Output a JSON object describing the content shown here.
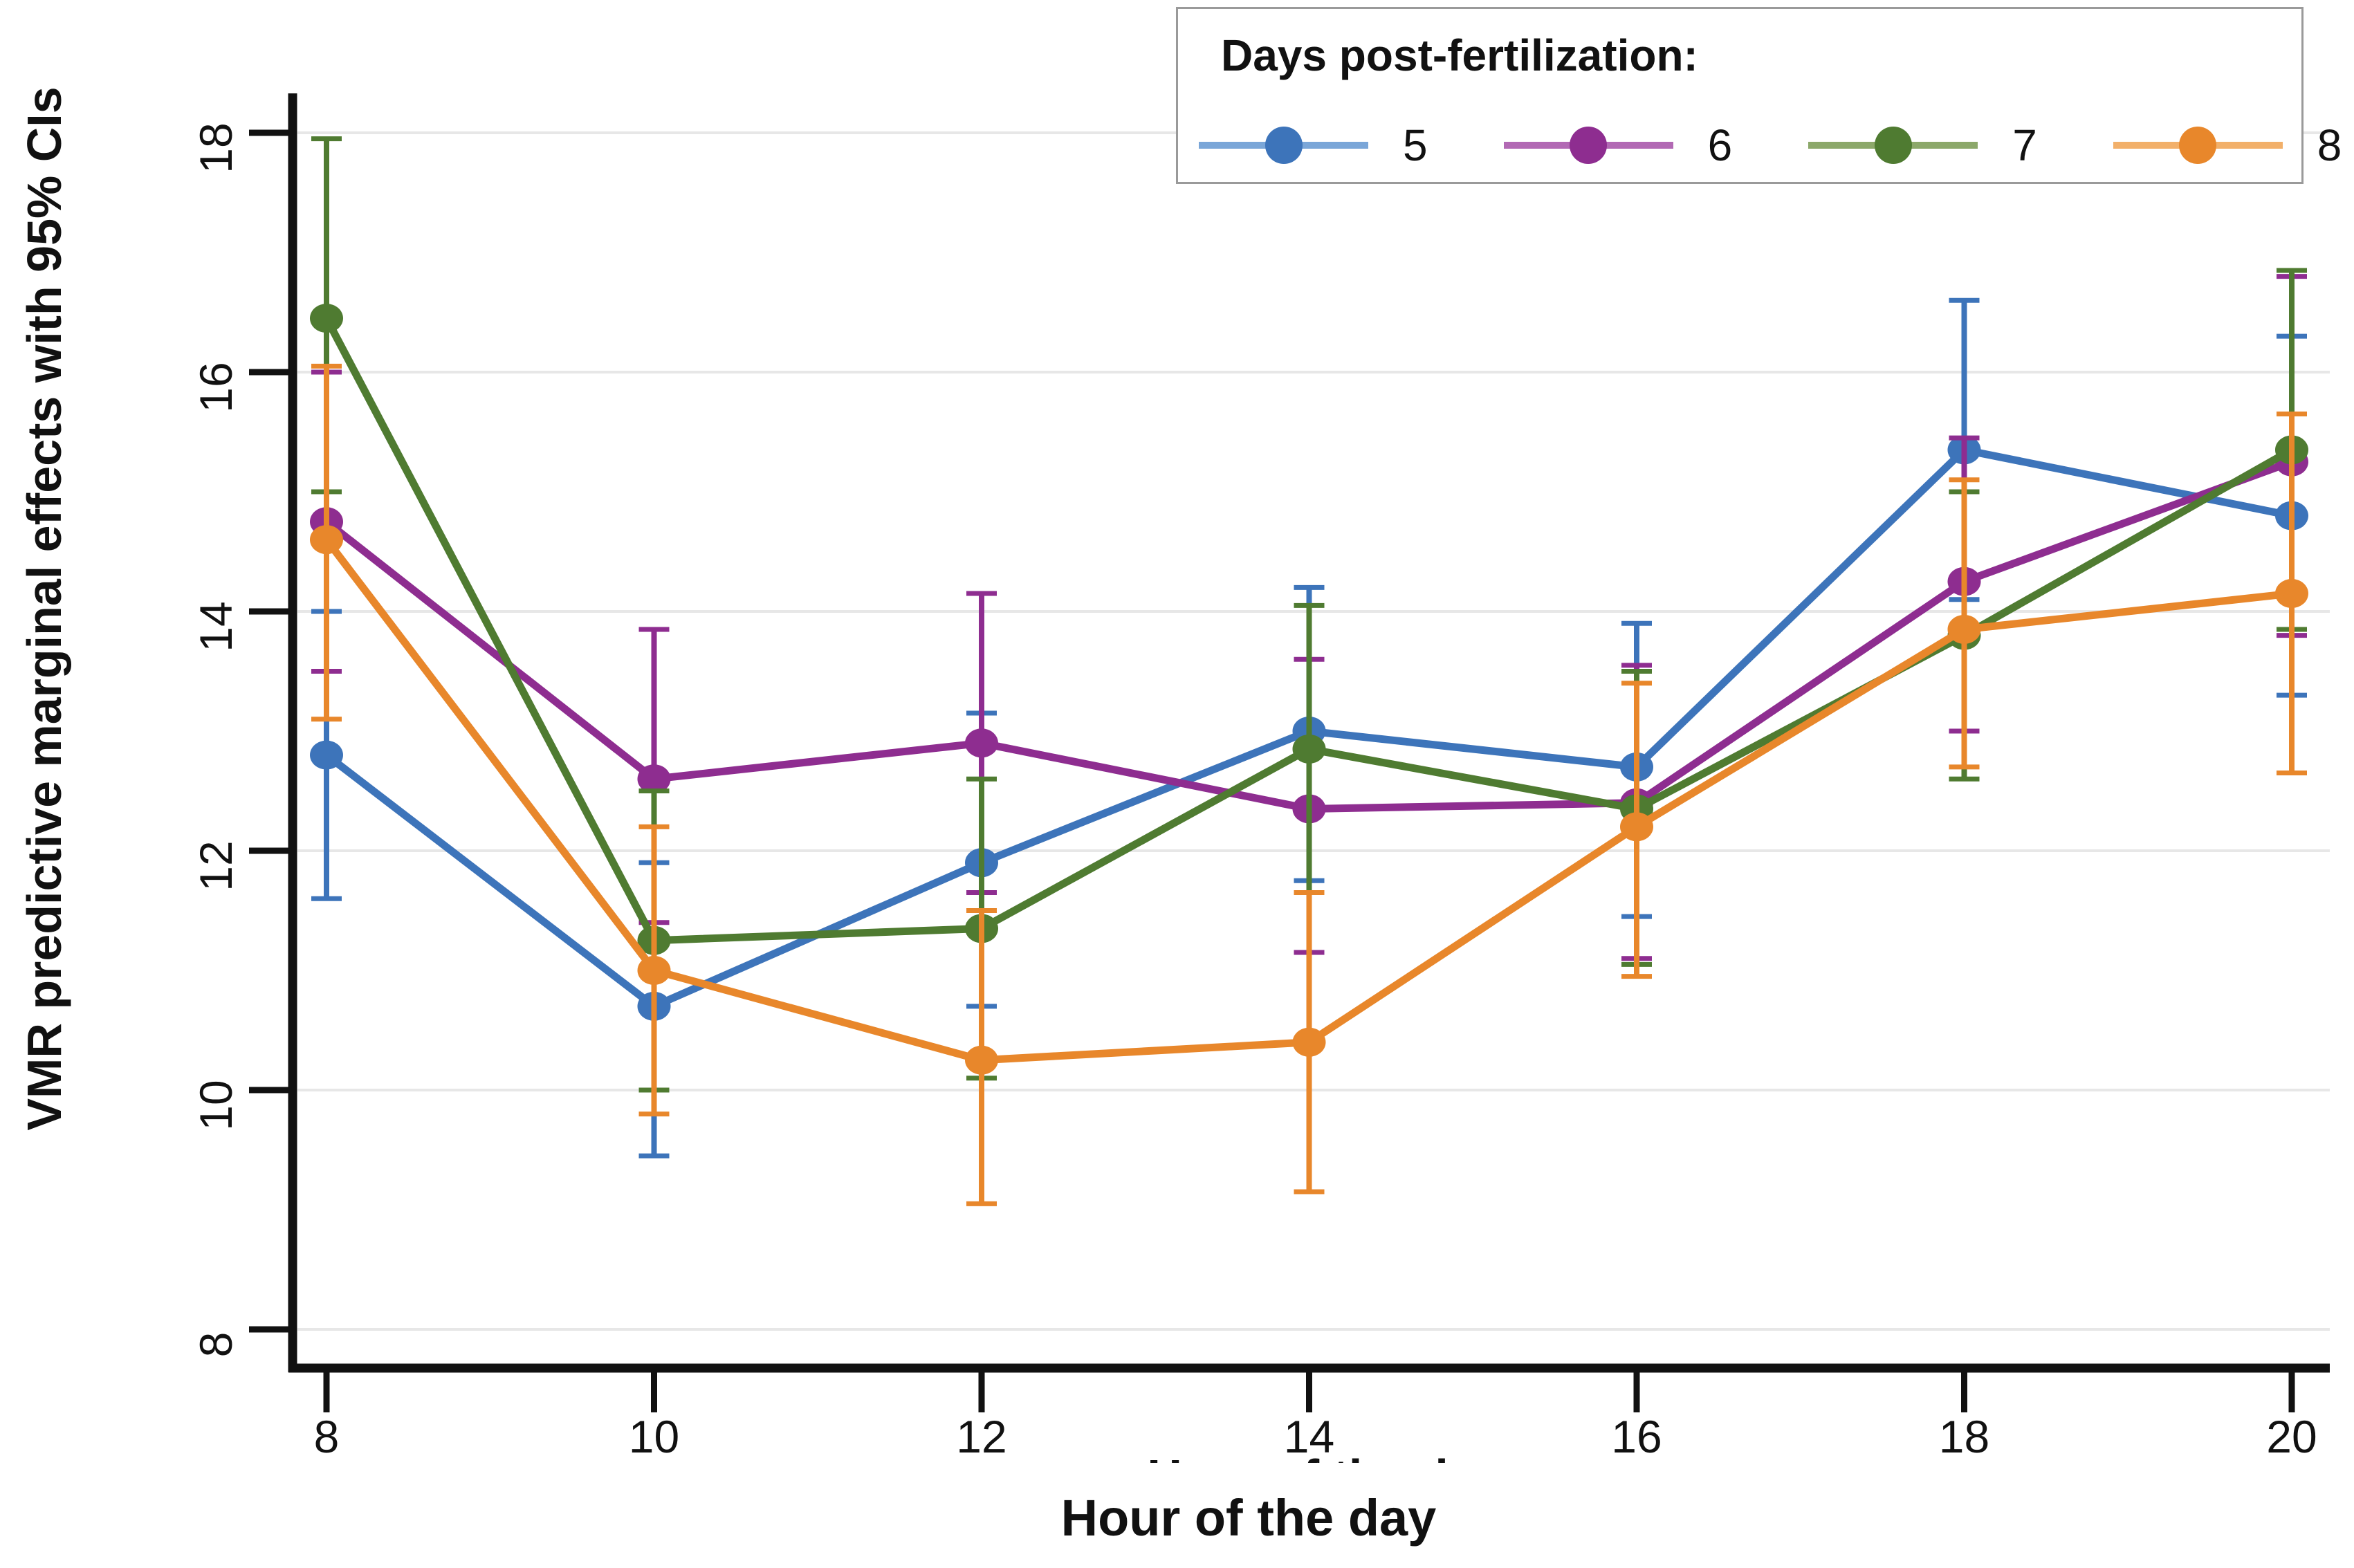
{
  "figure": {
    "y_axis_title": "VMR predictive marginal effects with 95% CIs",
    "x_axis_title": "Hour of the day",
    "x_axis_title_clipped": "Hour of the day"
  },
  "legend": {
    "title": "Days post-fertilization:",
    "entries": [
      {
        "label": "5",
        "color": "#3d74ba",
        "line_color": "#7aa6d8"
      },
      {
        "label": "6",
        "color": "#8e2d90",
        "line_color": "#b269b4"
      },
      {
        "label": "7",
        "color": "#4f7b31",
        "line_color": "#8ca86a"
      },
      {
        "label": "8",
        "color": "#e8872b",
        "line_color": "#f2b06a"
      }
    ]
  },
  "chart_data": {
    "type": "line",
    "title": "",
    "xlabel": "Hour of the day",
    "ylabel": "VMR predictive marginal effects with 95% CIs",
    "legend_title": "Days post-fertilization:",
    "legend_position": "top-right",
    "x": [
      8,
      10,
      12,
      14,
      16,
      18,
      20
    ],
    "x_ticks": [
      8,
      10,
      12,
      14,
      16,
      18,
      20
    ],
    "y_ticks": [
      8,
      10,
      12,
      14,
      16,
      18
    ],
    "xlim": [
      7.8,
      20.1
    ],
    "ylim": [
      7.7,
      18.3
    ],
    "grid": "horizontal",
    "error_bars": "95% CI",
    "series": [
      {
        "name": "5",
        "color": "#3d74ba",
        "values": [
          12.8,
          10.7,
          11.9,
          13.0,
          12.7,
          15.35,
          14.8
        ],
        "ci_low": [
          11.6,
          9.45,
          10.7,
          11.75,
          11.45,
          14.1,
          13.3
        ],
        "ci_high": [
          14.0,
          11.9,
          13.15,
          14.2,
          13.9,
          16.6,
          16.3
        ]
      },
      {
        "name": "6",
        "color": "#8e2d90",
        "values": [
          14.75,
          12.6,
          12.9,
          12.35,
          12.4,
          14.25,
          15.25
        ],
        "ci_low": [
          13.5,
          11.4,
          11.65,
          11.15,
          11.1,
          13.0,
          13.8
        ],
        "ci_high": [
          16.0,
          13.85,
          14.15,
          13.6,
          13.55,
          15.45,
          16.8
        ]
      },
      {
        "name": "7",
        "color": "#4f7b31",
        "values": [
          16.45,
          11.25,
          11.35,
          12.85,
          12.35,
          13.8,
          15.35
        ],
        "ci_low": [
          15.0,
          10.0,
          10.1,
          11.65,
          11.05,
          12.6,
          13.85
        ],
        "ci_high": [
          17.95,
          12.5,
          12.6,
          14.05,
          13.5,
          15.0,
          16.85
        ]
      },
      {
        "name": "8",
        "color": "#e8872b",
        "values": [
          14.6,
          11.0,
          10.25,
          10.4,
          12.2,
          13.85,
          14.15
        ],
        "ci_low": [
          13.1,
          9.8,
          9.05,
          9.15,
          10.95,
          12.7,
          12.65
        ],
        "ci_high": [
          16.05,
          12.2,
          11.5,
          11.65,
          13.4,
          15.1,
          15.65
        ]
      }
    ]
  }
}
